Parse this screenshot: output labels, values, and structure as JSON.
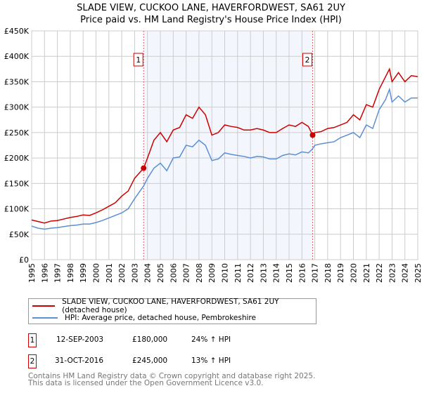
{
  "chart_data": {
    "type": "line",
    "title": "SLADE VIEW, CUCKOO LANE, HAVERFORDWEST, SA61 2UY",
    "subtitle": "Price paid vs. HM Land Registry's House Price Index (HPI)",
    "xlim": [
      1995,
      2025
    ],
    "ylim": [
      0,
      450000
    ],
    "yticks": [
      0,
      50000,
      100000,
      150000,
      200000,
      250000,
      300000,
      350000,
      400000,
      450000
    ],
    "ytick_labels": [
      "£0",
      "£50K",
      "£100K",
      "£150K",
      "£200K",
      "£250K",
      "£300K",
      "£350K",
      "£400K",
      "£450K"
    ],
    "xticks": [
      "1995",
      "1996",
      "1997",
      "1998",
      "1999",
      "2000",
      "2001",
      "2002",
      "2003",
      "2004",
      "2005",
      "2006",
      "2007",
      "2008",
      "2009",
      "2010",
      "2011",
      "2012",
      "2013",
      "2014",
      "2015",
      "2016",
      "2017",
      "2018",
      "2019",
      "2020",
      "2021",
      "2022",
      "2023",
      "2024",
      "2025"
    ],
    "grid": true,
    "shaded_range": [
      2003.7,
      2016.83
    ],
    "series": [
      {
        "name": "SLADE VIEW, CUCKOO LANE, HAVERFORDWEST, SA61 2UY (detached house)",
        "color": "#cc0000",
        "x": [
          1995,
          1995.5,
          1996,
          1996.5,
          1997,
          1997.5,
          1998,
          1998.5,
          1999,
          1999.5,
          2000,
          2000.5,
          2001,
          2001.5,
          2002,
          2002.5,
          2003,
          2003.7,
          2004,
          2004.5,
          2005,
          2005.5,
          2006,
          2006.5,
          2007,
          2007.5,
          2008,
          2008.5,
          2009,
          2009.5,
          2010,
          2010.5,
          2011,
          2011.5,
          2012,
          2012.5,
          2013,
          2013.5,
          2014,
          2014.5,
          2015,
          2015.5,
          2016,
          2016.5,
          2016.83,
          2017,
          2017.5,
          2018,
          2018.5,
          2019,
          2019.5,
          2020,
          2020.5,
          2021,
          2021.5,
          2022,
          2022.5,
          2022.8,
          2023,
          2023.5,
          2024,
          2024.5,
          2025
        ],
        "y": [
          78000,
          75000,
          72000,
          76000,
          77000,
          80000,
          83000,
          85000,
          88000,
          87000,
          92000,
          98000,
          105000,
          112000,
          125000,
          135000,
          160000,
          180000,
          200000,
          235000,
          250000,
          232000,
          255000,
          260000,
          285000,
          278000,
          300000,
          285000,
          245000,
          250000,
          265000,
          262000,
          260000,
          255000,
          255000,
          258000,
          255000,
          250000,
          250000,
          258000,
          265000,
          262000,
          270000,
          262000,
          245000,
          250000,
          252000,
          258000,
          260000,
          265000,
          270000,
          285000,
          275000,
          305000,
          300000,
          335000,
          360000,
          375000,
          350000,
          368000,
          350000,
          362000,
          360000
        ]
      },
      {
        "name": "HPI: Average price, detached house, Pembrokeshire",
        "color": "#5b8fd4",
        "x": [
          1995,
          1995.5,
          1996,
          1996.5,
          1997,
          1997.5,
          1998,
          1998.5,
          1999,
          1999.5,
          2000,
          2000.5,
          2001,
          2001.5,
          2002,
          2002.5,
          2003,
          2003.7,
          2004,
          2004.5,
          2005,
          2005.5,
          2006,
          2006.5,
          2007,
          2007.5,
          2008,
          2008.5,
          2009,
          2009.5,
          2010,
          2010.5,
          2011,
          2011.5,
          2012,
          2012.5,
          2013,
          2013.5,
          2014,
          2014.5,
          2015,
          2015.5,
          2016,
          2016.5,
          2016.83,
          2017,
          2017.5,
          2018,
          2018.5,
          2019,
          2019.5,
          2020,
          2020.5,
          2021,
          2021.5,
          2022,
          2022.5,
          2022.8,
          2023,
          2023.5,
          2024,
          2024.5,
          2025
        ],
        "y": [
          66000,
          62000,
          60000,
          62000,
          63000,
          65000,
          67000,
          68000,
          70000,
          70000,
          73000,
          77000,
          82000,
          87000,
          92000,
          100000,
          120000,
          145000,
          160000,
          180000,
          190000,
          175000,
          200000,
          202000,
          225000,
          222000,
          235000,
          225000,
          195000,
          198000,
          210000,
          207000,
          205000,
          203000,
          200000,
          203000,
          202000,
          198000,
          198000,
          205000,
          208000,
          206000,
          212000,
          210000,
          218000,
          225000,
          228000,
          230000,
          232000,
          240000,
          245000,
          250000,
          240000,
          265000,
          258000,
          295000,
          315000,
          335000,
          310000,
          322000,
          310000,
          318000,
          318000
        ]
      }
    ],
    "sales": [
      {
        "label": "1",
        "x": 2003.7,
        "y": 180000
      },
      {
        "label": "2",
        "x": 2016.83,
        "y": 245000
      }
    ]
  },
  "legend": {
    "property": "SLADE VIEW, CUCKOO LANE, HAVERFORDWEST, SA61 2UY (detached house)",
    "hpi": "HPI: Average price, detached house, Pembrokeshire"
  },
  "transactions": [
    {
      "num": "1",
      "date": "12-SEP-2003",
      "price": "£180,000",
      "hpi": "24% ↑ HPI"
    },
    {
      "num": "2",
      "date": "31-OCT-2016",
      "price": "£245,000",
      "hpi": "13% ↑ HPI"
    }
  ],
  "footer": {
    "line1": "Contains HM Land Registry data © Crown copyright and database right 2025.",
    "line2": "This data is licensed under the Open Government Licence v3.0."
  }
}
